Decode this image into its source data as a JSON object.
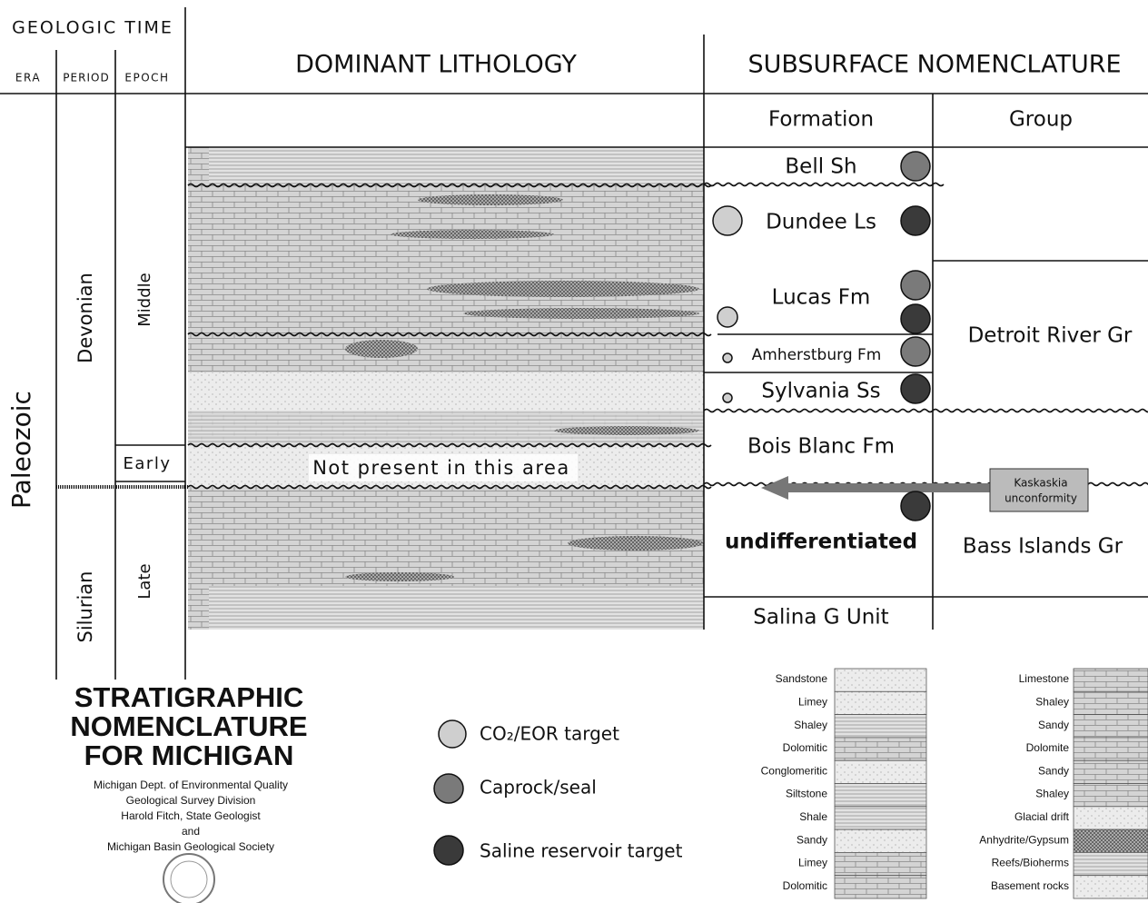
{
  "header": {
    "geologic_time": "GEOLOGIC TIME",
    "era": "ERA",
    "period": "PERIOD",
    "epoch": "EPOCH",
    "lithology": "DOMINANT LITHOLOGY",
    "subsurface": "SUBSURFACE NOMENCLATURE",
    "formation": "Formation",
    "group": "Group"
  },
  "era": "Paleozoic",
  "periods": [
    "Devonian",
    "Silurian"
  ],
  "epochs": [
    "Middle",
    "Early",
    "Late"
  ],
  "formations": [
    "Bell Sh",
    "Dundee Ls",
    "Lucas Fm",
    "Amherstburg Fm",
    "Sylvania Ss",
    "Bois Blanc Fm",
    "undifferentiated",
    "Salina G Unit"
  ],
  "groups": [
    "Detroit River Gr",
    "Bass Islands Gr"
  ],
  "annotation": "Not present in this area",
  "unconformity": [
    "Kaskaskia",
    "unconformity"
  ],
  "title": [
    "STRATIGRAPHIC",
    "NOMENCLATURE",
    "FOR MICHIGAN"
  ],
  "credits": [
    "Michigan Dept. of Environmental Quality",
    "Geological Survey Division",
    "Harold Fitch, State Geologist",
    "and",
    "Michigan Basin Geological Society"
  ],
  "targets": [
    "CO₂/EOR target",
    "Caprock/seal",
    "Saline reservoir target"
  ],
  "legend_left": [
    "Sandstone",
    "Limey",
    "Shaley",
    "Dolomitic",
    "Conglomeritic",
    "Siltstone",
    "Shale",
    "Sandy",
    "Limey",
    "Dolomitic"
  ],
  "legend_right": [
    "Limestone",
    "Shaley",
    "Sandy",
    "Dolomite",
    "Sandy",
    "Shaley",
    "Glacial drift",
    "Anhydrite/Gypsum",
    "Reefs/Bioherms",
    "Basement rocks"
  ]
}
